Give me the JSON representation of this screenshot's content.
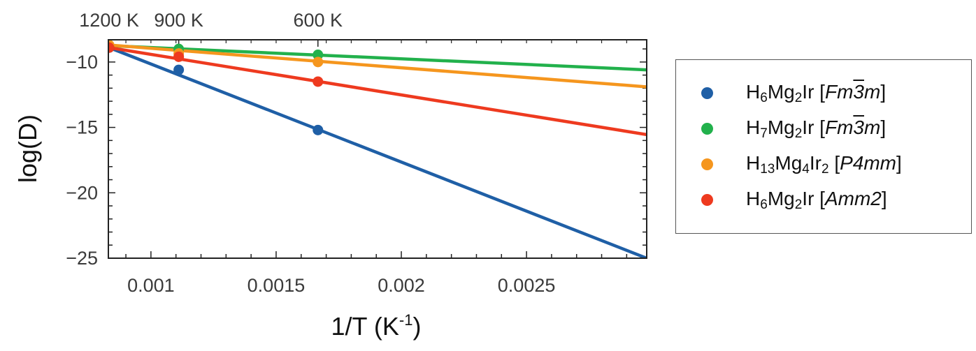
{
  "chart_data": {
    "type": "scatter",
    "title": "",
    "xlabel": "1/T (K",
    "xlabel_sup": "-1",
    "xlabel_close": ")",
    "ylabel": "log(D)",
    "xlim": [
      0.00083,
      0.00298
    ],
    "ylim": [
      -25,
      -8.3
    ],
    "xticks": [
      0.001,
      0.0015,
      0.002,
      0.0025
    ],
    "xtick_labels": [
      "0.001",
      "0.0015",
      "0.002",
      "0.0025"
    ],
    "yticks": [
      -10,
      -15,
      -20,
      -25
    ],
    "ytick_labels": [
      "−10",
      "−15",
      "−20",
      "−25"
    ],
    "top_axis": {
      "ticks": [
        0.000833,
        0.001111,
        0.001667
      ],
      "labels": [
        "1200 K",
        "900 K",
        "600 K"
      ]
    },
    "series": [
      {
        "name": "H6Mg2Ir [Fm-3m]",
        "color": "#1f5fa6",
        "points": [
          [
            0.000833,
            -8.9
          ],
          [
            0.001111,
            -10.6
          ],
          [
            0.001667,
            -15.2
          ]
        ],
        "fit": [
          [
            0.000833,
            -8.9
          ],
          [
            0.00298,
            -25.0
          ]
        ]
      },
      {
        "name": "H7Mg2Ir [Fm-3m]",
        "color": "#22b14c",
        "points": [
          [
            0.000833,
            -8.75
          ],
          [
            0.001111,
            -9.0
          ],
          [
            0.001667,
            -9.45
          ]
        ],
        "fit": [
          [
            0.000833,
            -8.75
          ],
          [
            0.00298,
            -10.6
          ]
        ]
      },
      {
        "name": "H13Mg4Ir2 [P4mm]",
        "color": "#f5961e",
        "points": [
          [
            0.000833,
            -8.7
          ],
          [
            0.001111,
            -9.35
          ],
          [
            0.001667,
            -10.0
          ]
        ],
        "fit": [
          [
            0.000833,
            -8.7
          ],
          [
            0.00298,
            -11.9
          ]
        ]
      },
      {
        "name": "H6Mg2Ir [Amm2]",
        "color": "#ee3a1f",
        "points": [
          [
            0.000833,
            -8.9
          ],
          [
            0.001111,
            -9.6
          ],
          [
            0.001667,
            -11.5
          ]
        ],
        "fit": [
          [
            0.000833,
            -8.9
          ],
          [
            0.00298,
            -15.55
          ]
        ]
      }
    ]
  },
  "legend": [
    {
      "base": "H",
      "s1": "6",
      "m1": "Mg",
      "s2": "2",
      "m2": "Ir",
      "s3": "",
      "m3": "",
      "open": " [",
      "g1": "Fm",
      "g2": "3",
      "g3": "m",
      "close": "]"
    },
    {
      "base": "H",
      "s1": "7",
      "m1": "Mg",
      "s2": "2",
      "m2": "Ir",
      "s3": "",
      "m3": "",
      "open": " [",
      "g1": "Fm",
      "g2": "3",
      "g3": "m",
      "close": "]"
    },
    {
      "base": "H",
      "s1": "13",
      "m1": "Mg",
      "s2": "4",
      "m2": "Ir",
      "s3": "2",
      "m3": "",
      "open": " [",
      "g1": "P4mm",
      "g2": "",
      "g3": "",
      "close": "]"
    },
    {
      "base": "H",
      "s1": "6",
      "m1": "Mg",
      "s2": "2",
      "m2": "Ir",
      "s3": "",
      "m3": "",
      "open": " [",
      "g1": "Amm2",
      "g2": "",
      "g3": "",
      "close": "]"
    }
  ]
}
